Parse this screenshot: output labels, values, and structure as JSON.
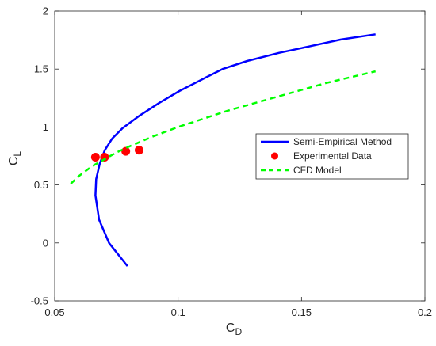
{
  "chart_data": {
    "type": "line",
    "xlabel": {
      "main": "C",
      "sub": "D"
    },
    "ylabel": {
      "main": "C",
      "sub": "L"
    },
    "xlim": [
      0.05,
      0.2
    ],
    "ylim": [
      -0.5,
      2
    ],
    "xticks": [
      0.05,
      0.1,
      0.15,
      0.2
    ],
    "xtick_labels": [
      "0.05",
      "0.1",
      "0.15",
      "0.2"
    ],
    "yticks": [
      -0.5,
      0,
      0.5,
      1,
      1.5,
      2
    ],
    "ytick_labels": [
      "-0.5",
      "0",
      "0.5",
      "1",
      "1.5",
      "2"
    ],
    "grid": false,
    "box": true,
    "legend": {
      "position": "right"
    },
    "series": [
      {
        "name": "Semi-Empirical Method",
        "style": "solid-line",
        "color": "#0000ff",
        "x": [
          0.0795,
          0.072,
          0.068,
          0.0665,
          0.0668,
          0.0682,
          0.0703,
          0.0733,
          0.0775,
          0.0845,
          0.0925,
          0.1005,
          0.1115,
          0.118,
          0.128,
          0.141,
          0.153,
          0.166,
          0.18
        ],
        "y": [
          -0.2,
          0.0,
          0.2,
          0.41,
          0.55,
          0.68,
          0.8,
          0.9,
          0.99,
          1.1,
          1.21,
          1.31,
          1.43,
          1.5,
          1.57,
          1.64,
          1.695,
          1.755,
          1.8
        ]
      },
      {
        "name": "Experimental Data",
        "style": "markers",
        "color": "#ff0000",
        "x": [
          0.0665,
          0.0702,
          0.0788,
          0.0842
        ],
        "y": [
          0.74,
          0.74,
          0.79,
          0.8
        ]
      },
      {
        "name": "CFD Model",
        "style": "dashed-line",
        "color": "#00ff00",
        "x": [
          0.0565,
          0.06,
          0.065,
          0.07,
          0.075,
          0.08,
          0.09,
          0.1,
          0.11,
          0.12,
          0.13,
          0.14,
          0.15,
          0.16,
          0.17,
          0.18
        ],
        "y": [
          0.51,
          0.58,
          0.66,
          0.72,
          0.78,
          0.83,
          0.92,
          1.0,
          1.07,
          1.14,
          1.2,
          1.26,
          1.32,
          1.38,
          1.43,
          1.48
        ]
      }
    ]
  }
}
